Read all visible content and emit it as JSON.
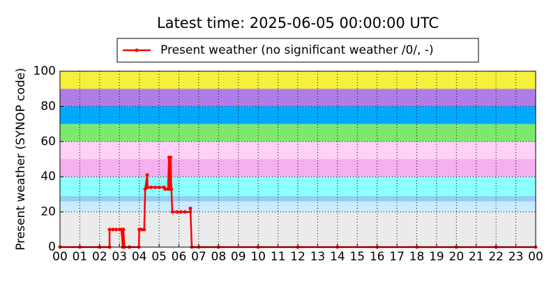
{
  "chart_data": {
    "type": "line",
    "title": "Latest time: 2025-06-05 00:00:00 UTC",
    "ylabel": "Present weather (SYNOP code)",
    "xlim": [
      0,
      24
    ],
    "ylim": [
      0,
      100
    ],
    "xticks": [
      {
        "value": 0,
        "label": "00"
      },
      {
        "value": 1,
        "label": "01"
      },
      {
        "value": 2,
        "label": "02"
      },
      {
        "value": 3,
        "label": "03"
      },
      {
        "value": 4,
        "label": "04"
      },
      {
        "value": 5,
        "label": "05"
      },
      {
        "value": 6,
        "label": "06"
      },
      {
        "value": 7,
        "label": "07"
      },
      {
        "value": 8,
        "label": "08"
      },
      {
        "value": 9,
        "label": "09"
      },
      {
        "value": 10,
        "label": "10"
      },
      {
        "value": 11,
        "label": "11"
      },
      {
        "value": 12,
        "label": "12"
      },
      {
        "value": 13,
        "label": "13"
      },
      {
        "value": 14,
        "label": "14"
      },
      {
        "value": 15,
        "label": "15"
      },
      {
        "value": 16,
        "label": "16"
      },
      {
        "value": 17,
        "label": "17"
      },
      {
        "value": 18,
        "label": "18"
      },
      {
        "value": 19,
        "label": "19"
      },
      {
        "value": 20,
        "label": "20"
      },
      {
        "value": 21,
        "label": "21"
      },
      {
        "value": 22,
        "label": "22"
      },
      {
        "value": 23,
        "label": "23"
      },
      {
        "value": 24,
        "label": "00"
      }
    ],
    "yticks": [
      0,
      20,
      40,
      60,
      80,
      100
    ],
    "grid": true,
    "bands": [
      {
        "from": 0,
        "to": 20,
        "color": "#ebebeb"
      },
      {
        "from": 20,
        "to": 26,
        "color": "#c8ecff"
      },
      {
        "from": 26,
        "to": 29,
        "color": "#96cdf5"
      },
      {
        "from": 29,
        "to": 40,
        "color": "#8cffff"
      },
      {
        "from": 40,
        "to": 50,
        "color": "#f5b0f0"
      },
      {
        "from": 50,
        "to": 60,
        "color": "#ffd0f8"
      },
      {
        "from": 60,
        "to": 70,
        "color": "#7ee86e"
      },
      {
        "from": 70,
        "to": 80,
        "color": "#00aaff"
      },
      {
        "from": 80,
        "to": 90,
        "color": "#b07de8"
      },
      {
        "from": 90,
        "to": 100,
        "color": "#f5f03c"
      }
    ],
    "legend": "top",
    "series": [
      {
        "name": "Present weather (no significant weather /0/, -)",
        "color": "#ff0000",
        "x": [
          0,
          1,
          2,
          2.5,
          2.5,
          2.67,
          2.83,
          3.0,
          3.1,
          3.17,
          3.2,
          3.25,
          3.5,
          3.98,
          4.0,
          4.1,
          4.25,
          4.3,
          4.4,
          4.42,
          4.6,
          4.8,
          5.0,
          5.25,
          5.3,
          5.45,
          5.5,
          5.52,
          5.55,
          5.58,
          5.62,
          5.67,
          5.9,
          6.1,
          6.3,
          6.58,
          6.58,
          6.65,
          7,
          8,
          10,
          12,
          14,
          16,
          18,
          20,
          22,
          24
        ],
        "values": [
          0,
          0,
          0,
          0,
          10,
          10,
          10,
          10,
          10,
          0,
          10,
          0,
          0,
          0,
          10,
          10,
          10,
          33,
          41,
          34,
          34,
          34,
          34,
          34,
          33,
          33,
          51,
          33,
          45,
          51,
          33,
          20,
          20,
          20,
          20,
          20,
          22,
          0,
          0,
          0,
          0,
          0,
          0,
          0,
          0,
          0,
          0,
          0
        ]
      }
    ]
  }
}
